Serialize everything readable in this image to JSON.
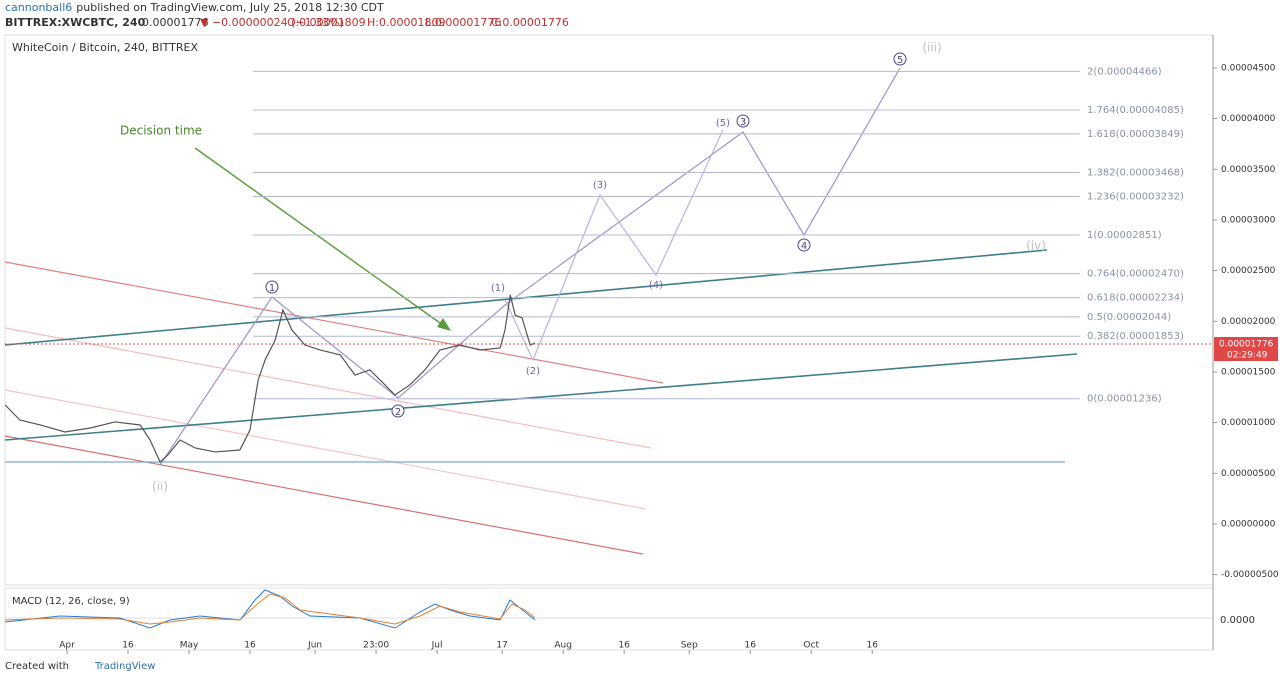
{
  "header": {
    "user": "cannonball6",
    "published": "published on TradingView.com, July 25, 2018 12:30 CDT",
    "symbol": "BITTREX:XWCBTC, 240",
    "last": "0.00001776",
    "change": "▼ −0.00000024 (−1.33%)",
    "open": "O:0.00001809",
    "high": "H:0.00001809",
    "low": "L:0.00001776",
    "close": "C:0.00001776"
  },
  "chart_data": {
    "type": "line",
    "title": "WhiteCoin / Bitcoin, 240, BITTREX",
    "color": "#555555",
    "x": [
      -15.2,
      -11.6,
      -6.6,
      -0.5,
      5.7,
      11.8,
      18.0,
      20.4,
      22.9,
      24.8,
      27.8,
      31.5,
      36.4,
      42.5,
      45.0,
      47.0,
      48.7,
      51.2,
      53.1,
      55.3,
      58.5,
      62.2,
      67.2,
      70.8,
      74.5,
      78.2,
      80.6,
      84.3,
      88.0,
      91.7,
      96.6,
      101.6,
      106.5,
      107.7,
      109.0,
      110.2,
      111.9,
      113.9,
      115.1
    ],
    "values": [
      1.174e-05,
      1.026e-05,
      9.77e-06,
      9.08e-06,
      9.47e-06,
      1.007e-05,
      9.77e-06,
      8.29e-06,
      6.12e-06,
      6.81e-06,
      8.29e-06,
      7.5e-06,
      7.11e-06,
      7.3e-06,
      9.28e-06,
      1.421e-05,
      1.618e-05,
      1.816e-05,
      2.112e-05,
      1.914e-05,
      1.766e-05,
      1.717e-05,
      1.668e-05,
      1.47e-05,
      1.52e-05,
      1.372e-05,
      1.273e-05,
      1.372e-05,
      1.52e-05,
      1.717e-05,
      1.766e-05,
      1.717e-05,
      1.737e-05,
      1.914e-05,
      2.26e-05,
      2.062e-05,
      2.033e-05,
      1.766e-05,
      1.786e-05
    ],
    "xlim": [
      -15.25,
      281.8
    ],
    "xticks": [
      {
        "value": 0,
        "label": "Apr"
      },
      {
        "value": 15,
        "label": "16"
      },
      {
        "value": 30,
        "label": "May"
      },
      {
        "value": 45,
        "label": "16"
      },
      {
        "value": 61,
        "label": "Jun"
      },
      {
        "value": 76,
        "label": "23:00"
      },
      {
        "value": 91,
        "label": "Jul"
      },
      {
        "value": 107,
        "label": "17"
      },
      {
        "value": 122,
        "label": "Aug"
      },
      {
        "value": 137,
        "label": "16"
      },
      {
        "value": 153,
        "label": "Sep"
      },
      {
        "value": 168,
        "label": "16"
      },
      {
        "value": 183,
        "label": "Oct"
      },
      {
        "value": 198,
        "label": "16"
      }
    ],
    "ylim": [
      -6.02e-06,
      4.825e-05
    ],
    "yticks": [
      {
        "value": 4.5e-05,
        "label": "0.00004500"
      },
      {
        "value": 4e-05,
        "label": "0.00004000"
      },
      {
        "value": 3.5e-05,
        "label": "0.00003500"
      },
      {
        "value": 3e-05,
        "label": "0.00003000"
      },
      {
        "value": 2.5e-05,
        "label": "0.00002500"
      },
      {
        "value": 2e-05,
        "label": "0.00002000"
      },
      {
        "value": 1.5e-05,
        "label": "0.00001500"
      },
      {
        "value": 1e-05,
        "label": "0.00001000"
      },
      {
        "value": 5e-06,
        "label": "0.00000500"
      },
      {
        "value": 0,
        "label": "0.00000000"
      },
      {
        "value": -5e-06,
        "label": "-0.00000500"
      }
    ],
    "last_price": {
      "value": 1.776e-05,
      "label": "0.00001776"
    },
    "countdown": "02:29:49",
    "fib_levels": [
      {
        "value": 4.466e-05,
        "label": "2(0.00004466)"
      },
      {
        "value": 4.085e-05,
        "label": "1.764(0.00004085)"
      },
      {
        "value": 3.849e-05,
        "label": "1.618(0.00003849)"
      },
      {
        "value": 3.468e-05,
        "label": "1.382(0.00003468)"
      },
      {
        "value": 3.232e-05,
        "label": "1.236(0.00003232)"
      },
      {
        "value": 2.851e-05,
        "label": "1(0.00002851)"
      },
      {
        "value": 2.47e-05,
        "label": "0.764(0.00002470)"
      },
      {
        "value": 2.234e-05,
        "label": "0.618(0.00002234)"
      },
      {
        "value": 2.044e-05,
        "label": "0.5(0.00002044)"
      },
      {
        "value": 1.853e-05,
        "label": "0.382(0.00001853)"
      },
      {
        "value": 1.236e-05,
        "label": "0(0.00001236)"
      }
    ],
    "annotation": "Decision time",
    "waves": [
      "1",
      "2",
      "3",
      "4",
      "5"
    ],
    "subwaves": [
      "(1)",
      "(2)",
      "(3)",
      "(4)",
      "(5)"
    ],
    "degree_waves": [
      "(ii)",
      "(iii)",
      "(iv)"
    ],
    "macd": {
      "title": "MACD (12, 26, close, 9)",
      "ytick": "0.0000"
    }
  },
  "footer": {
    "created": "Created with",
    "brand": "TradingView"
  }
}
